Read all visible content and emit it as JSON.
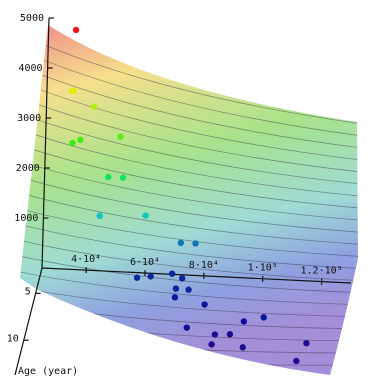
{
  "chart_data": {
    "type": "scatter3d",
    "x": [
      34800,
      33900,
      35000,
      42100,
      35400,
      38000,
      51600,
      48200,
      53200,
      46000,
      61600,
      73800,
      78800,
      60000,
      64600,
      71500,
      75300,
      74000,
      78300,
      74100,
      84600,
      80200,
      89800,
      94900,
      98800,
      105500,
      89500,
      100100,
      121300,
      119100
    ],
    "y": [
      3,
      3,
      3.5,
      3.5,
      4,
      4,
      4,
      4.5,
      4.5,
      5,
      5,
      5,
      5,
      6,
      6,
      5.5,
      6,
      7,
      7,
      7.5,
      8,
      10,
      10,
      10,
      9,
      9,
      11,
      11,
      10.5,
      12
    ],
    "z": [
      4920,
      3700,
      3800,
      3500,
      2850,
      2920,
      3020,
      2300,
      2300,
      1610,
      1660,
      1150,
      1150,
      600,
      640,
      620,
      630,
      610,
      600,
      530,
      510,
      410,
      300,
      320,
      400,
      500,
      290,
      260,
      310,
      230
    ],
    "xlim": [
      25000,
      130000
    ],
    "ylim": [
      2.3,
      13.7
    ],
    "zlim": [
      0,
      5000
    ],
    "xticks": [
      {
        "value": 40000,
        "label": "4·10⁴"
      },
      {
        "value": 60000,
        "label": "6·10⁴"
      },
      {
        "value": 80000,
        "label": "8·10⁴"
      },
      {
        "value": 100000,
        "label": "1·10⁵"
      },
      {
        "value": 120000,
        "label": "1.2·10⁵"
      }
    ],
    "yticks": [
      5,
      10
    ],
    "zticks": [
      1000,
      2000,
      3000,
      4000,
      5000
    ],
    "ylabel": "Age (year)"
  }
}
